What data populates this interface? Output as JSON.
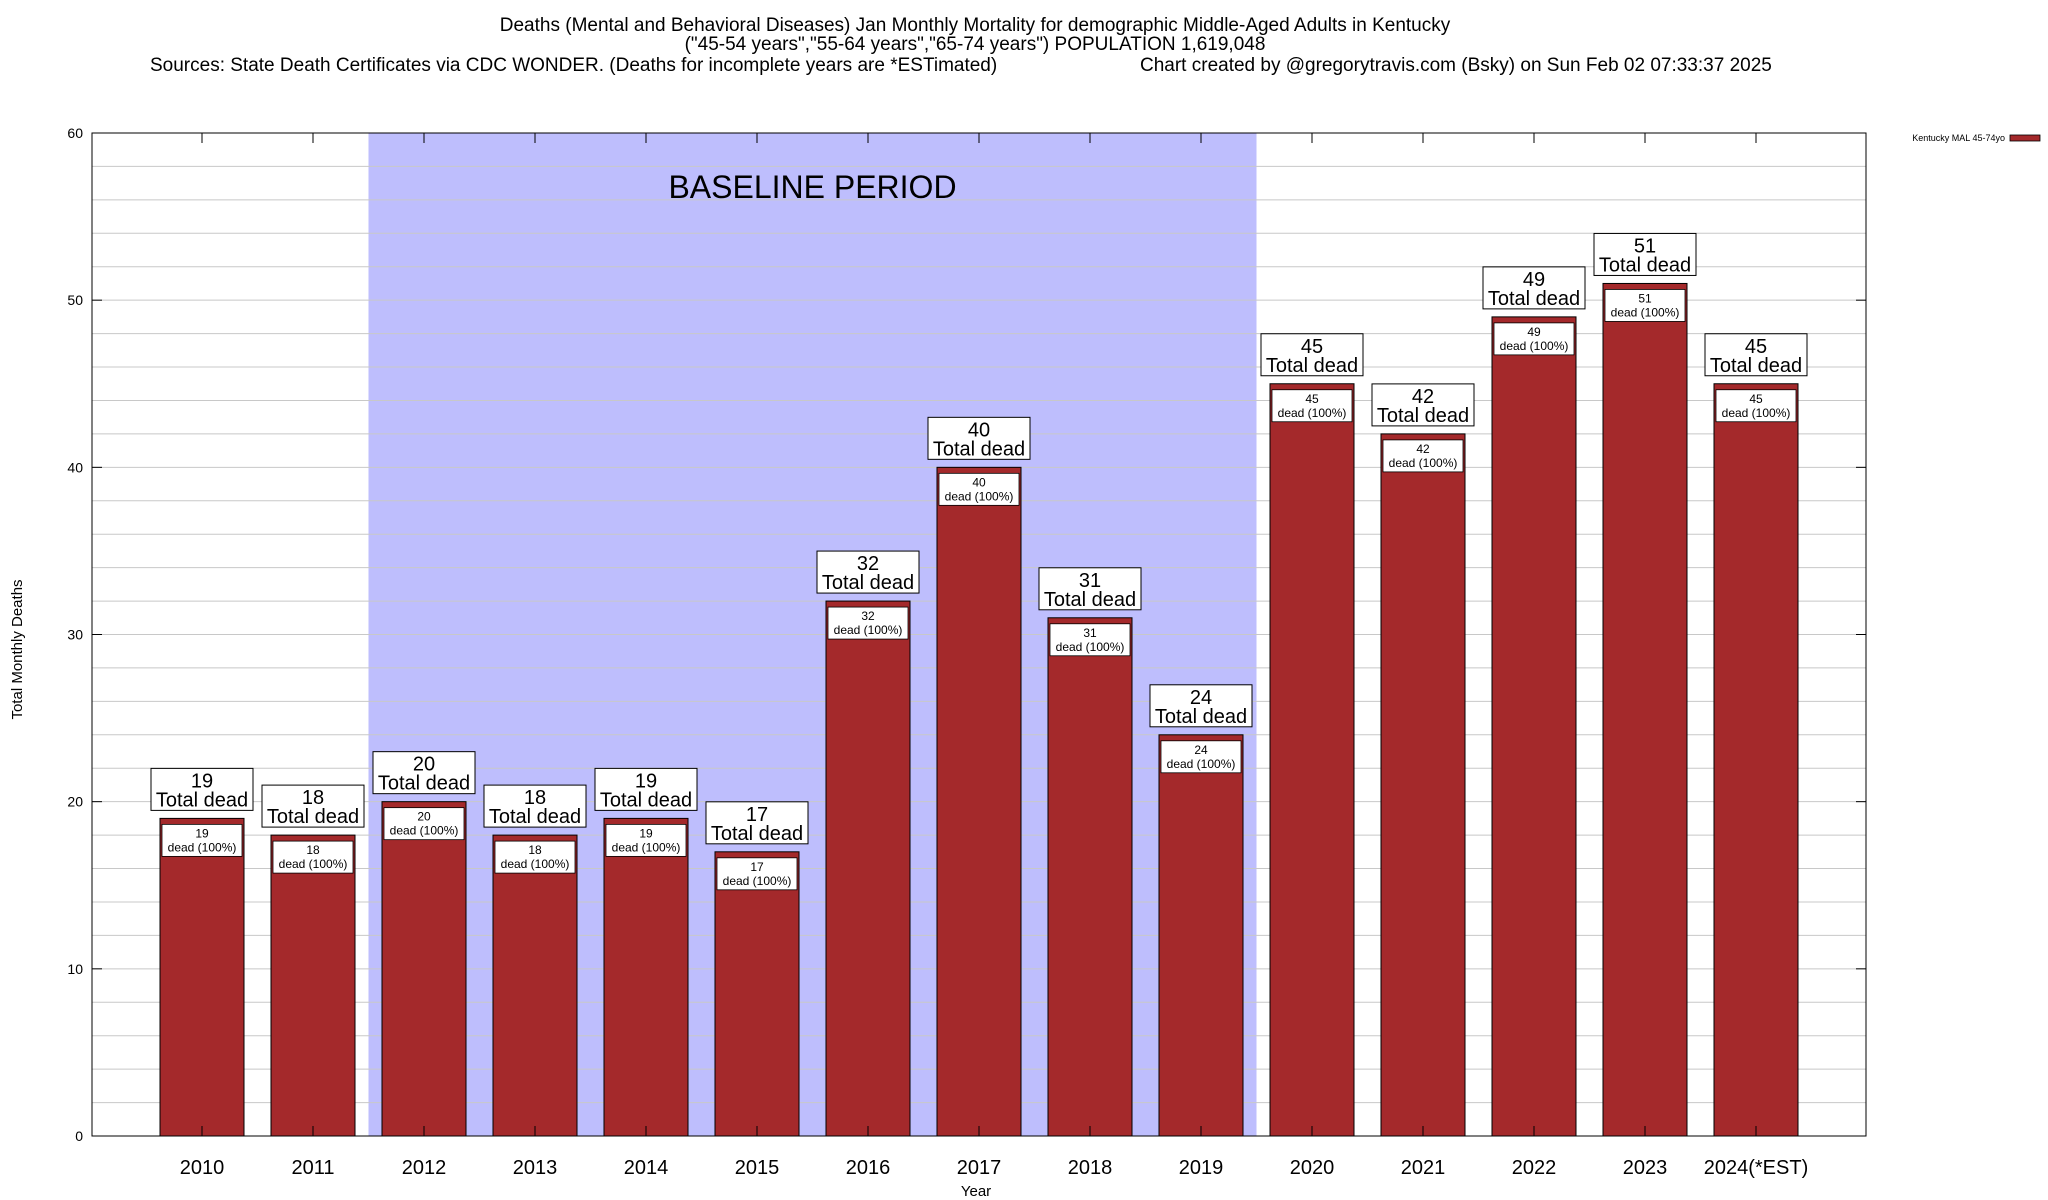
{
  "header": {
    "title_line1": "Deaths (Mental and Behavioral Diseases) Jan Monthly Mortality for demographic Middle-Aged Adults in Kentucky",
    "title_line2": "(\"45-54 years\",\"55-64 years\",\"65-74 years\") POPULATION 1,619,048",
    "sources": "Sources: State Death Certificates via CDC WONDER. (Deaths for incomplete years are *ESTimated)",
    "credit": "Chart created by @gregorytravis.com (Bsky) on Sun Feb 02 07:33:37 2025"
  },
  "colors": {
    "bar": "#a4292b",
    "band": "#bebefd",
    "grid": "#c8c8c8"
  },
  "chart_data": {
    "type": "bar",
    "categories": [
      "2010",
      "2011",
      "2012",
      "2013",
      "2014",
      "2015",
      "2016",
      "2017",
      "2018",
      "2019",
      "2020",
      "2021",
      "2022",
      "2023",
      "2024(*EST)"
    ],
    "series": [
      {
        "name": "Kentucky MAL 45-74yo",
        "values": [
          19,
          18,
          20,
          18,
          19,
          17,
          32,
          40,
          31,
          24,
          45,
          42,
          49,
          51,
          45
        ]
      }
    ],
    "big_label_suffix": "Total dead",
    "small_label_suffix": "dead (100%)",
    "xlabel": "Year",
    "ylabel": "Total Monthly Deaths",
    "ylim": [
      0,
      60
    ],
    "yticks": [
      0,
      10,
      20,
      30,
      40,
      50,
      60
    ],
    "grid": true,
    "legend_position": "top-right",
    "baseline": {
      "label": "BASELINE PERIOD",
      "start": "2012",
      "end": "2019"
    }
  }
}
